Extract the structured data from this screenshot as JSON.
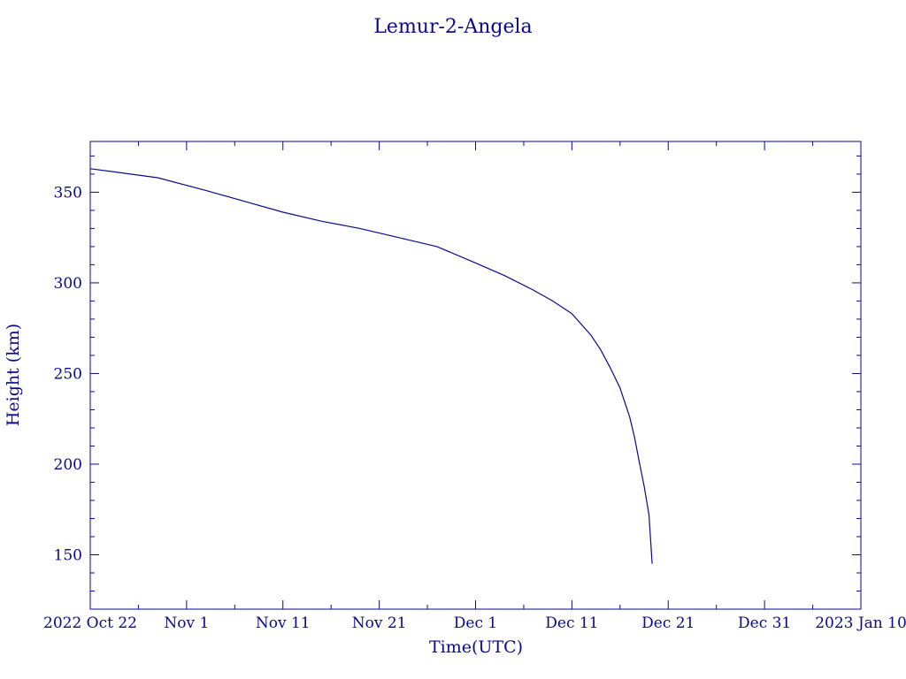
{
  "chart_data": {
    "type": "line",
    "title": "Lemur-2-Angela",
    "xlabel": "Time(UTC)",
    "ylabel": "Height (km)",
    "ylim": [
      120,
      378
    ],
    "xlim": [
      "2022-10-22",
      "2023-01-10"
    ],
    "x_ticks": [
      {
        "date": "2022-10-22",
        "label": "2022 Oct 22"
      },
      {
        "date": "2022-11-01",
        "label": "Nov  1"
      },
      {
        "date": "2022-11-11",
        "label": "Nov 11"
      },
      {
        "date": "2022-11-21",
        "label": "Nov 21"
      },
      {
        "date": "2022-12-01",
        "label": "Dec  1"
      },
      {
        "date": "2022-12-11",
        "label": "Dec 11"
      },
      {
        "date": "2022-12-21",
        "label": "Dec 21"
      },
      {
        "date": "2022-12-31",
        "label": "Dec 31"
      },
      {
        "date": "2023-01-10",
        "label": "2023 Jan 10"
      }
    ],
    "y_ticks": [
      150,
      200,
      250,
      300,
      350
    ],
    "grid": false,
    "color": "#0a0a8a",
    "series": [
      {
        "x": [
          "2022-10-22",
          "2022-10-29",
          "2022-11-03",
          "2022-11-07",
          "2022-11-11",
          "2022-11-15",
          "2022-11-19",
          "2022-11-23",
          "2022-11-27",
          "2022-12-01",
          "2022-12-04",
          "2022-12-07",
          "2022-12-09",
          "2022-12-11",
          "2022-12-13",
          "2022-12-14",
          "2022-12-15",
          "2022-12-16",
          "2022-12-17",
          "2022-12-17T12:00",
          "2022-12-18",
          "2022-12-18T12:00",
          "2022-12-19",
          "2022-12-19T08:00"
        ],
        "y": [
          363,
          358,
          351,
          345,
          339,
          334,
          330,
          325,
          320,
          311,
          304,
          296,
          290,
          283,
          271,
          263,
          253,
          242,
          226,
          215,
          201,
          188,
          172,
          145
        ]
      }
    ]
  }
}
